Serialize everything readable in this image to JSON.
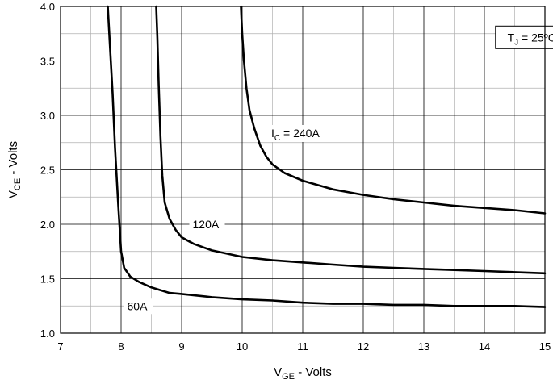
{
  "chart_data": {
    "type": "line",
    "title": "",
    "xlabel": {
      "main": "V",
      "sub": "GE",
      "rest": " - Volts"
    },
    "ylabel": {
      "main": "V",
      "sub": "CE",
      "rest": " - Volts"
    },
    "xlim": [
      7,
      15
    ],
    "ylim": [
      1.0,
      4.0
    ],
    "x_ticks": [
      "7",
      "8",
      "9",
      "10",
      "11",
      "12",
      "13",
      "14",
      "15"
    ],
    "y_ticks": [
      "1.0",
      "1.5",
      "2.0",
      "2.5",
      "3.0",
      "3.5",
      "4.0"
    ],
    "grid": true,
    "series": [
      {
        "label": "60A",
        "x": [
          7.78,
          7.82,
          7.86,
          7.9,
          7.95,
          8.0,
          8.05,
          8.15,
          8.3,
          8.5,
          8.8,
          9.0,
          9.5,
          10.0,
          10.5,
          11.0,
          11.5,
          12.0,
          12.5,
          13.0,
          13.5,
          14.0,
          14.5,
          15.0
        ],
        "y": [
          4.0,
          3.6,
          3.2,
          2.7,
          2.2,
          1.75,
          1.6,
          1.52,
          1.47,
          1.42,
          1.37,
          1.36,
          1.33,
          1.31,
          1.3,
          1.28,
          1.27,
          1.27,
          1.26,
          1.26,
          1.25,
          1.25,
          1.25,
          1.24
        ]
      },
      {
        "label": "120A",
        "x": [
          8.58,
          8.6,
          8.62,
          8.65,
          8.68,
          8.72,
          8.8,
          8.9,
          9.0,
          9.2,
          9.5,
          10.0,
          10.5,
          11.0,
          11.5,
          12.0,
          12.5,
          13.0,
          13.5,
          14.0,
          14.5,
          15.0
        ],
        "y": [
          4.0,
          3.7,
          3.3,
          2.8,
          2.45,
          2.2,
          2.05,
          1.95,
          1.88,
          1.82,
          1.76,
          1.7,
          1.67,
          1.65,
          1.63,
          1.61,
          1.6,
          1.59,
          1.58,
          1.57,
          1.56,
          1.55
        ]
      },
      {
        "label": "240A",
        "x": [
          9.98,
          10.0,
          10.03,
          10.07,
          10.12,
          10.2,
          10.3,
          10.4,
          10.5,
          10.7,
          11.0,
          11.5,
          12.0,
          12.5,
          13.0,
          13.5,
          14.0,
          14.5,
          15.0
        ],
        "y": [
          4.0,
          3.75,
          3.5,
          3.25,
          3.05,
          2.88,
          2.72,
          2.62,
          2.55,
          2.47,
          2.4,
          2.32,
          2.27,
          2.23,
          2.2,
          2.17,
          2.15,
          2.13,
          2.1
        ]
      }
    ],
    "annotations": {
      "tj": {
        "main": "T",
        "sub": "J",
        "rest": " = 25ºC"
      },
      "ic": {
        "main": "I",
        "sub": "C",
        "rest": " = 240A"
      },
      "label_120": "120A",
      "label_60": "60A"
    }
  }
}
